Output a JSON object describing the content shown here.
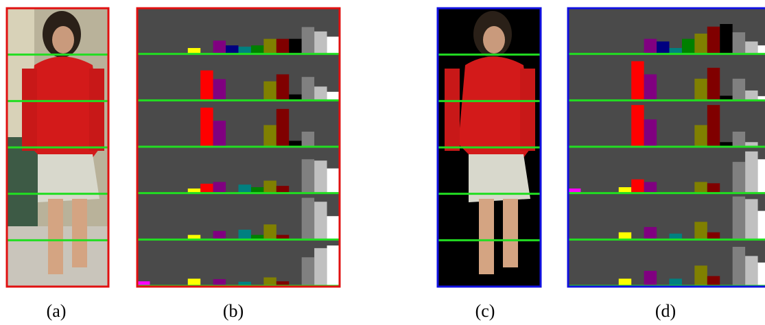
{
  "captions": [
    "(a)",
    "(b)",
    "(c)",
    "(d)"
  ],
  "chart_data": [
    {
      "type": "bar",
      "colors": [
        "#ff00ff",
        "#0000ff",
        "#00ffff",
        "#00ff00",
        "#ffff00",
        "#ff0000",
        "#800080",
        "#000080",
        "#008080",
        "#008000",
        "#808000",
        "#800000",
        "#000000",
        "#808080",
        "#c0c0c0",
        "#ffffff"
      ],
      "ylim": [
        0,
        100
      ],
      "stripes": [
        {
          "values": [
            0,
            0,
            0,
            0,
            12,
            0,
            29,
            18,
            15,
            18,
            33,
            33,
            33,
            60,
            50,
            38
          ]
        },
        {
          "values": [
            0,
            0,
            0,
            0,
            0,
            67,
            47,
            0,
            0,
            0,
            42,
            58,
            12,
            52,
            30,
            18
          ]
        },
        {
          "values": [
            0,
            0,
            0,
            0,
            0,
            88,
            58,
            0,
            0,
            0,
            48,
            85,
            12,
            33,
            0,
            0
          ]
        },
        {
          "values": [
            0,
            0,
            0,
            0,
            9,
            20,
            24,
            0,
            18,
            12,
            27,
            15,
            0,
            76,
            73,
            55
          ]
        },
        {
          "values": [
            0,
            0,
            0,
            0,
            9,
            0,
            18,
            0,
            21,
            9,
            33,
            9,
            0,
            94,
            85,
            52
          ]
        },
        {
          "values": [
            9,
            0,
            0,
            0,
            15,
            0,
            14,
            0,
            8,
            0,
            18,
            9,
            0,
            64,
            85,
            91
          ]
        }
      ]
    },
    {
      "type": "bar",
      "colors": [
        "#ff00ff",
        "#0000ff",
        "#00ffff",
        "#00ff00",
        "#ffff00",
        "#ff0000",
        "#800080",
        "#000080",
        "#008080",
        "#008000",
        "#808000",
        "#800000",
        "#000000",
        "#808080",
        "#c0c0c0",
        "#ffffff"
      ],
      "ylim": [
        0,
        100
      ],
      "stripes": [
        {
          "values": [
            0,
            0,
            0,
            0,
            0,
            0,
            33,
            27,
            12,
            33,
            45,
            61,
            67,
            48,
            27,
            18
          ]
        },
        {
          "values": [
            0,
            0,
            0,
            0,
            0,
            88,
            58,
            0,
            0,
            0,
            48,
            73,
            9,
            48,
            21,
            8
          ]
        },
        {
          "values": [
            0,
            0,
            0,
            0,
            0,
            94,
            61,
            0,
            0,
            0,
            48,
            94,
            9,
            33,
            9,
            0
          ]
        },
        {
          "values": [
            9,
            0,
            0,
            0,
            12,
            30,
            24,
            0,
            0,
            0,
            24,
            21,
            0,
            70,
            94,
            76
          ]
        },
        {
          "values": [
            0,
            0,
            0,
            0,
            15,
            0,
            27,
            0,
            12,
            0,
            39,
            15,
            0,
            97,
            91,
            64
          ]
        },
        {
          "values": [
            0,
            0,
            0,
            0,
            15,
            0,
            33,
            0,
            15,
            0,
            45,
            21,
            0,
            88,
            67,
            52
          ]
        }
      ]
    }
  ]
}
